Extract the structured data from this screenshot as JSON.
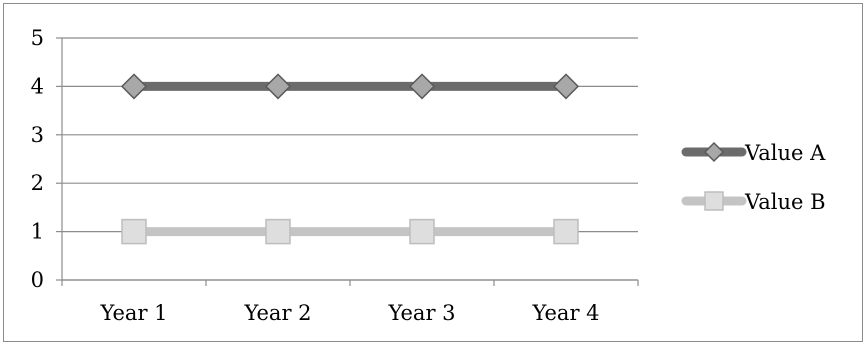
{
  "chart_data": {
    "type": "line",
    "categories": [
      "Year 1",
      "Year 2",
      "Year 3",
      "Year 4"
    ],
    "series": [
      {
        "name": "Value A",
        "values": [
          4,
          4,
          4,
          4
        ],
        "color": "#6b6b6b",
        "marker_color": "#a8a8a8",
        "marker": "diamond"
      },
      {
        "name": "Value B",
        "values": [
          1,
          1,
          1,
          1
        ],
        "color": "#c4c4c4",
        "marker_color": "#dedede",
        "marker": "square"
      }
    ],
    "title": "",
    "xlabel": "",
    "ylabel": "",
    "ylim": [
      0,
      5
    ],
    "yticks": [
      "0",
      "1",
      "2",
      "3",
      "4",
      "5"
    ],
    "grid": true,
    "legend": "right"
  }
}
